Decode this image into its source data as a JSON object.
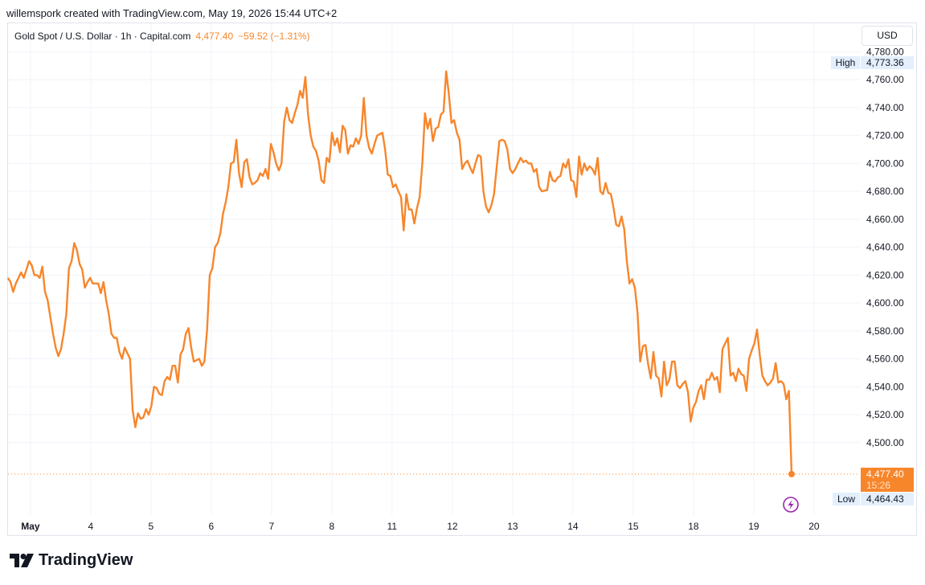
{
  "header": {
    "attribution": "willemspork created with TradingView.com, May 19, 2026 15:44 UTC+2"
  },
  "legend": {
    "symbol": "Gold Spot / U.S. Dollar · 1h · Capital.com",
    "last_price": "4,477.40",
    "change": "−59.52 (−1.31%)"
  },
  "currency_button": "USD",
  "price_scale": {
    "high_label": "High",
    "high_value": "4,773.36",
    "low_label": "Low",
    "low_value": "4,464.43",
    "last_value": "4,477.40",
    "countdown": "15:26"
  },
  "brand": {
    "name": "TradingView"
  },
  "colors": {
    "line": "#f7862b",
    "last_bg": "#f7862b",
    "grid": "#f0f3fa",
    "hl_bg": "#e3effd"
  },
  "chart_data": {
    "type": "line",
    "title": "Gold Spot / U.S. Dollar · 1h · Capital.com",
    "xlabel": "",
    "ylabel": "",
    "ylim": [
      4443,
      4790
    ],
    "y_ticks": [
      4500,
      4520,
      4540,
      4560,
      4580,
      4600,
      4620,
      4640,
      4660,
      4680,
      4700,
      4720,
      4740,
      4760,
      4780
    ],
    "y_tick_labels": [
      "4,500.00",
      "4,520.00",
      "4,540.00",
      "4,560.00",
      "4,580.00",
      "4,600.00",
      "4,620.00",
      "4,640.00",
      "4,660.00",
      "4,680.00",
      "4,700.00",
      "4,720.00",
      "4,740.00",
      "4,760.00",
      "4,780.00"
    ],
    "x_ticks": [
      {
        "label": "May",
        "pos": 0.5
      },
      {
        "label": "4",
        "pos": 4.5
      },
      {
        "label": "5",
        "pos": 8.5
      },
      {
        "label": "6",
        "pos": 12.5
      },
      {
        "label": "7",
        "pos": 16.5
      },
      {
        "label": "8",
        "pos": 20.5
      },
      {
        "label": "11",
        "pos": 24.5
      },
      {
        "label": "12",
        "pos": 28.5
      },
      {
        "label": "13",
        "pos": 32.5
      },
      {
        "label": "14",
        "pos": 36.5
      },
      {
        "label": "15",
        "pos": 40.5
      },
      {
        "label": "18",
        "pos": 44.5
      },
      {
        "label": "19",
        "pos": 48.5
      },
      {
        "label": "20",
        "pos": 52.5
      }
    ],
    "x_range": [
      0,
      56.1
    ],
    "grid": true,
    "series": [
      {
        "values": [
          [
            0.0,
            4618
          ],
          [
            0.1,
            4615
          ],
          [
            0.2,
            4608
          ],
          [
            0.3,
            4614
          ],
          [
            0.5,
            4622
          ],
          [
            0.6,
            4618
          ],
          [
            0.8,
            4630
          ],
          [
            0.9,
            4627
          ],
          [
            1.0,
            4620
          ],
          [
            1.1,
            4620
          ],
          [
            1.2,
            4618
          ],
          [
            1.3,
            4626
          ],
          [
            1.4,
            4608
          ],
          [
            1.5,
            4602
          ],
          [
            1.7,
            4578
          ],
          [
            1.8,
            4568
          ],
          [
            1.9,
            4562
          ],
          [
            2.0,
            4567
          ],
          [
            2.1,
            4578
          ],
          [
            2.2,
            4592
          ],
          [
            2.3,
            4625
          ],
          [
            2.4,
            4630
          ],
          [
            2.5,
            4643
          ],
          [
            2.6,
            4638
          ],
          [
            2.7,
            4628
          ],
          [
            2.8,
            4624
          ],
          [
            2.9,
            4611
          ],
          [
            3.0,
            4615
          ],
          [
            3.1,
            4618
          ],
          [
            3.2,
            4614
          ],
          [
            3.4,
            4614
          ],
          [
            3.5,
            4607
          ],
          [
            3.6,
            4615
          ],
          [
            3.7,
            4602
          ],
          [
            3.8,
            4592
          ],
          [
            3.9,
            4578
          ],
          [
            4.0,
            4575
          ],
          [
            4.1,
            4575
          ],
          [
            4.2,
            4565
          ],
          [
            4.3,
            4560
          ],
          [
            4.4,
            4568
          ],
          [
            4.6,
            4560
          ],
          [
            4.7,
            4523
          ],
          [
            4.8,
            4511
          ],
          [
            4.9,
            4521
          ],
          [
            5.0,
            4517
          ],
          [
            5.1,
            4518
          ],
          [
            5.2,
            4524
          ],
          [
            5.3,
            4520
          ],
          [
            5.4,
            4526
          ],
          [
            5.5,
            4540
          ],
          [
            5.6,
            4539
          ],
          [
            5.7,
            4535
          ],
          [
            5.8,
            4534
          ],
          [
            5.9,
            4544
          ],
          [
            6.0,
            4547
          ],
          [
            6.1,
            4545
          ],
          [
            6.2,
            4555
          ],
          [
            6.3,
            4555
          ],
          [
            6.4,
            4543
          ],
          [
            6.5,
            4563
          ],
          [
            6.6,
            4567
          ],
          [
            6.7,
            4578
          ],
          [
            6.8,
            4582
          ],
          [
            6.9,
            4568
          ],
          [
            7.0,
            4558
          ],
          [
            7.2,
            4560
          ],
          [
            7.3,
            4555
          ],
          [
            7.4,
            4558
          ],
          [
            7.5,
            4581
          ],
          [
            7.6,
            4620
          ],
          [
            7.7,
            4625
          ],
          [
            7.8,
            4640
          ],
          [
            7.9,
            4643
          ],
          [
            8.0,
            4650
          ],
          [
            8.1,
            4664
          ],
          [
            8.2,
            4672
          ],
          [
            8.3,
            4683
          ],
          [
            8.4,
            4700
          ],
          [
            8.5,
            4701
          ],
          [
            8.6,
            4717
          ],
          [
            8.7,
            4693
          ],
          [
            8.8,
            4683
          ],
          [
            8.9,
            4701
          ],
          [
            9.0,
            4703
          ],
          [
            9.1,
            4690
          ],
          [
            9.2,
            4685
          ],
          [
            9.3,
            4686
          ],
          [
            9.4,
            4688
          ],
          [
            9.5,
            4693
          ],
          [
            9.6,
            4691
          ],
          [
            9.7,
            4696
          ],
          [
            9.8,
            4689
          ],
          [
            9.9,
            4714
          ],
          [
            10.0,
            4708
          ],
          [
            10.1,
            4700
          ],
          [
            10.2,
            4695
          ],
          [
            10.3,
            4700
          ],
          [
            10.4,
            4730
          ],
          [
            10.5,
            4740
          ],
          [
            10.6,
            4731
          ],
          [
            10.7,
            4729
          ],
          [
            10.8,
            4736
          ],
          [
            10.9,
            4742
          ],
          [
            11.0,
            4752
          ],
          [
            11.1,
            4747
          ],
          [
            11.2,
            4762
          ],
          [
            11.3,
            4735
          ],
          [
            11.4,
            4720
          ],
          [
            11.5,
            4712
          ],
          [
            11.6,
            4709
          ],
          [
            11.7,
            4702
          ],
          [
            11.8,
            4688
          ],
          [
            11.9,
            4686
          ],
          [
            12.0,
            4704
          ],
          [
            12.1,
            4701
          ],
          [
            12.2,
            4722
          ],
          [
            12.3,
            4713
          ],
          [
            12.4,
            4718
          ],
          [
            12.5,
            4708
          ],
          [
            12.6,
            4727
          ],
          [
            12.7,
            4724
          ],
          [
            12.8,
            4707
          ],
          [
            12.9,
            4713
          ],
          [
            13.0,
            4712
          ],
          [
            13.1,
            4718
          ],
          [
            13.2,
            4714
          ],
          [
            13.3,
            4720
          ],
          [
            13.4,
            4747
          ],
          [
            13.5,
            4720
          ],
          [
            13.6,
            4711
          ],
          [
            13.7,
            4707
          ],
          [
            13.8,
            4714
          ],
          [
            13.9,
            4720
          ],
          [
            14.1,
            4722
          ],
          [
            14.2,
            4710
          ],
          [
            14.3,
            4692
          ],
          [
            14.4,
            4691
          ],
          [
            14.5,
            4683
          ],
          [
            14.6,
            4685
          ],
          [
            14.7,
            4680
          ],
          [
            14.8,
            4676
          ],
          [
            14.9,
            4652
          ],
          [
            15.0,
            4678
          ],
          [
            15.1,
            4667
          ],
          [
            15.2,
            4667
          ],
          [
            15.3,
            4657
          ],
          [
            15.4,
            4668
          ],
          [
            15.5,
            4676
          ],
          [
            15.6,
            4700
          ],
          [
            15.7,
            4736
          ],
          [
            15.8,
            4725
          ],
          [
            15.9,
            4732
          ],
          [
            16.0,
            4716
          ],
          [
            16.1,
            4725
          ],
          [
            16.2,
            4726
          ],
          [
            16.3,
            4735
          ],
          [
            16.4,
            4737
          ],
          [
            16.5,
            4766
          ],
          [
            16.6,
            4750
          ],
          [
            16.7,
            4729
          ],
          [
            16.8,
            4731
          ],
          [
            16.9,
            4722
          ],
          [
            17.0,
            4717
          ],
          [
            17.1,
            4696
          ],
          [
            17.2,
            4700
          ],
          [
            17.3,
            4702
          ],
          [
            17.4,
            4697
          ],
          [
            17.5,
            4693
          ],
          [
            17.6,
            4700
          ],
          [
            17.7,
            4706
          ],
          [
            17.8,
            4705
          ],
          [
            17.9,
            4680
          ],
          [
            18.0,
            4669
          ],
          [
            18.1,
            4665
          ],
          [
            18.2,
            4670
          ],
          [
            18.3,
            4678
          ],
          [
            18.4,
            4697
          ],
          [
            18.5,
            4716
          ],
          [
            18.6,
            4717
          ],
          [
            18.7,
            4716
          ],
          [
            18.8,
            4710
          ],
          [
            18.9,
            4696
          ],
          [
            19.0,
            4693
          ],
          [
            19.1,
            4696
          ],
          [
            19.2,
            4700
          ],
          [
            19.3,
            4704
          ],
          [
            19.4,
            4701
          ],
          [
            19.5,
            4702
          ],
          [
            19.6,
            4700
          ],
          [
            19.7,
            4700
          ],
          [
            19.8,
            4694
          ],
          [
            19.9,
            4696
          ],
          [
            20.0,
            4683
          ],
          [
            20.1,
            4680
          ],
          [
            20.3,
            4681
          ],
          [
            20.4,
            4694
          ],
          [
            20.5,
            4688
          ],
          [
            20.6,
            4687
          ],
          [
            20.7,
            4690
          ],
          [
            20.8,
            4691
          ],
          [
            20.9,
            4700
          ],
          [
            21.0,
            4697
          ],
          [
            21.1,
            4703
          ],
          [
            21.2,
            4688
          ],
          [
            21.3,
            4687
          ],
          [
            21.4,
            4676
          ],
          [
            21.5,
            4705
          ],
          [
            21.6,
            4692
          ],
          [
            21.7,
            4700
          ],
          [
            21.8,
            4695
          ],
          [
            21.9,
            4698
          ],
          [
            22.0,
            4696
          ],
          [
            22.1,
            4692
          ],
          [
            22.2,
            4704
          ],
          [
            22.3,
            4680
          ],
          [
            22.4,
            4678
          ],
          [
            22.5,
            4686
          ],
          [
            22.6,
            4679
          ],
          [
            22.7,
            4678
          ],
          [
            22.8,
            4668
          ],
          [
            22.9,
            4656
          ],
          [
            23.0,
            4655
          ],
          [
            23.1,
            4662
          ],
          [
            23.2,
            4653
          ],
          [
            23.3,
            4630
          ],
          [
            23.4,
            4614
          ],
          [
            23.5,
            4617
          ],
          [
            23.6,
            4611
          ],
          [
            23.7,
            4593
          ],
          [
            23.8,
            4558
          ],
          [
            23.9,
            4569
          ],
          [
            24.0,
            4570
          ],
          [
            24.1,
            4556
          ],
          [
            24.2,
            4546
          ],
          [
            24.3,
            4565
          ],
          [
            24.4,
            4548
          ],
          [
            24.5,
            4546
          ],
          [
            24.6,
            4533
          ],
          [
            24.7,
            4558
          ],
          [
            24.8,
            4541
          ],
          [
            24.9,
            4545
          ],
          [
            25.0,
            4558
          ],
          [
            25.1,
            4558
          ],
          [
            25.2,
            4541
          ],
          [
            25.3,
            4539
          ],
          [
            25.4,
            4542
          ],
          [
            25.5,
            4544
          ],
          [
            25.6,
            4536
          ],
          [
            25.7,
            4515
          ],
          [
            25.8,
            4525
          ],
          [
            25.9,
            4529
          ],
          [
            26.0,
            4537
          ],
          [
            26.1,
            4541
          ],
          [
            26.2,
            4531
          ],
          [
            26.3,
            4545
          ],
          [
            26.4,
            4545
          ],
          [
            26.5,
            4550
          ],
          [
            26.6,
            4545
          ],
          [
            26.7,
            4547
          ],
          [
            26.8,
            4536
          ],
          [
            26.9,
            4567
          ],
          [
            27.0,
            4571
          ],
          [
            27.1,
            4575
          ],
          [
            27.2,
            4548
          ],
          [
            27.3,
            4550
          ],
          [
            27.4,
            4544
          ],
          [
            27.5,
            4553
          ],
          [
            27.6,
            4549
          ],
          [
            27.7,
            4548
          ],
          [
            27.8,
            4537
          ],
          [
            27.9,
            4560
          ],
          [
            28.0,
            4566
          ],
          [
            28.1,
            4571
          ],
          [
            28.2,
            4581
          ],
          [
            28.3,
            4563
          ],
          [
            28.4,
            4548
          ],
          [
            28.5,
            4544
          ],
          [
            28.6,
            4541
          ],
          [
            28.7,
            4543
          ],
          [
            28.8,
            4546
          ],
          [
            28.9,
            4557
          ],
          [
            29.0,
            4543
          ],
          [
            29.1,
            4544
          ],
          [
            29.2,
            4542
          ],
          [
            29.3,
            4531
          ],
          [
            29.4,
            4537
          ],
          [
            29.5,
            4477.4
          ]
        ]
      }
    ]
  }
}
